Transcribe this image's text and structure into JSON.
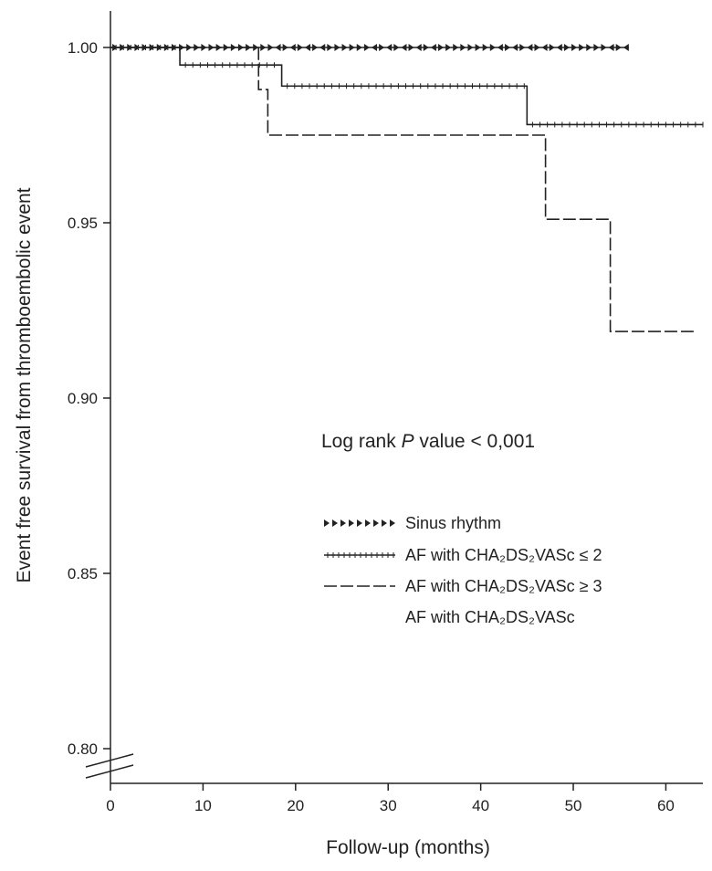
{
  "chart_data": {
    "type": "line",
    "title": "",
    "xlabel": "Follow-up (months)",
    "ylabel": "Event free survival from thromboembolic event",
    "xlim": [
      0,
      64
    ],
    "ylim": [
      0.79,
      1.01
    ],
    "x_ticks": [
      0,
      10,
      20,
      30,
      40,
      50,
      60
    ],
    "y_ticks": [
      0.8,
      0.85,
      0.9,
      0.95,
      1.0
    ],
    "x_tick_labels": [
      "0",
      "10",
      "20",
      "30",
      "40",
      "50",
      "60"
    ],
    "y_tick_labels": [
      "0.80",
      "0.85",
      "0.90",
      "0.95",
      "1.00"
    ],
    "axis_break": "y",
    "grid": false,
    "legend_position": "center-right",
    "annotation": {
      "prefix": "Log rank ",
      "italic": "P",
      "suffix": " value < 0,001"
    },
    "series": [
      {
        "name": "Sinus rhythm",
        "style": "censor-triangles",
        "steps": [
          [
            0,
            1.0
          ],
          [
            56,
            1.0
          ]
        ]
      },
      {
        "name": "AF with CHA₂DS₂VASc  ≤ 2",
        "style": "solid-ticks",
        "steps": [
          [
            0,
            1.0
          ],
          [
            7.5,
            0.995
          ],
          [
            18.5,
            0.989
          ],
          [
            45,
            0.978
          ],
          [
            64,
            0.978
          ]
        ]
      },
      {
        "name": "AF with CHA₂DS₂VASc ≥ 3",
        "style": "long-dash",
        "steps": [
          [
            0,
            1.0
          ],
          [
            16,
            0.988
          ],
          [
            17,
            0.975
          ],
          [
            47,
            0.951
          ],
          [
            54,
            0.919
          ],
          [
            63,
            0.919
          ]
        ]
      }
    ],
    "legend_extra_text": "AF with CHA₂DS₂VASc"
  }
}
